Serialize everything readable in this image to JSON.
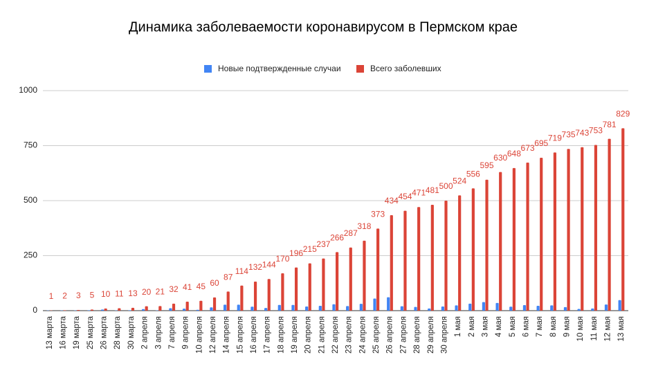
{
  "chart_data": {
    "type": "bar",
    "title": "Динамика заболеваемости коронавирусом в Пермском крае",
    "categories": [
      "13 марта",
      "16 марта",
      "19 марта",
      "25 марта",
      "26 марта",
      "28 марта",
      "30 марта",
      "2 апреля",
      "3 апреля",
      "7 апреля",
      "9 апреля",
      "10 апреля",
      "12 апреля",
      "14 апреля",
      "15 апреля",
      "16 апреля",
      "17 апреля",
      "18 апреля",
      "19 апреля",
      "20 апреля",
      "21 апреля",
      "22 апреля",
      "23 апреля",
      "24 апреля",
      "25 апреля",
      "26 апреля",
      "27 апреля",
      "28 апреля",
      "29 апреля",
      "30 апреля",
      "1 мая",
      "2 мая",
      "3 мая",
      "4 мая",
      "5 мая",
      "6 мая",
      "7 мая",
      "8 мая",
      "9 мая",
      "10 мая",
      "11 мая",
      "12 мая",
      "13 мая"
    ],
    "series": [
      {
        "name": "Новые подтвержденные случаи",
        "color": "#4285f4",
        "values": [
          1,
          1,
          1,
          2,
          5,
          1,
          2,
          7,
          1,
          11,
          9,
          4,
          15,
          27,
          27,
          18,
          12,
          26,
          26,
          19,
          22,
          29,
          21,
          31,
          55,
          61,
          20,
          17,
          10,
          19,
          24,
          32,
          39,
          35,
          18,
          25,
          22,
          24,
          16,
          8,
          10,
          28,
          48
        ]
      },
      {
        "name": "Всего заболевших",
        "color": "#db4437",
        "data_labels": true,
        "values": [
          1,
          2,
          3,
          5,
          10,
          11,
          13,
          20,
          21,
          32,
          41,
          45,
          60,
          87,
          114,
          132,
          144,
          170,
          196,
          215,
          237,
          266,
          287,
          318,
          373,
          434,
          454,
          471,
          481,
          500,
          524,
          556,
          595,
          630,
          648,
          673,
          695,
          719,
          735,
          743,
          753,
          781,
          829
        ]
      }
    ],
    "ylim": [
      0,
      1000
    ],
    "yticks": [
      0,
      250,
      500,
      750,
      1000
    ],
    "grid": true,
    "legend": "top"
  }
}
